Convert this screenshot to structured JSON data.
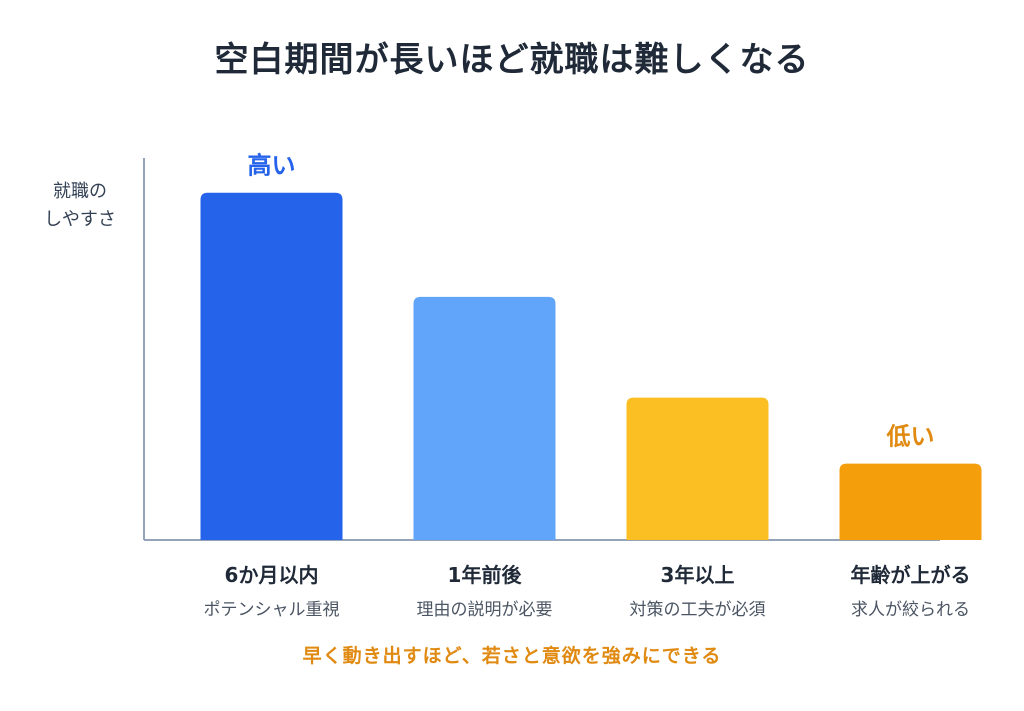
{
  "chart_data": {
    "type": "bar",
    "title": "空白期間が長いほど就職は難しくなる",
    "ylabel_lines": [
      "就職の",
      "しやすさ"
    ],
    "categories": [
      "6か月以内",
      "1年前後",
      "3年以上",
      "年齢が上がる"
    ],
    "subtitles": [
      "ポテンシャル重視",
      "理由の説明が必要",
      "対策の工夫が必須",
      "求人が絞られる"
    ],
    "values": [
      100,
      70,
      41,
      22
    ],
    "ylim": [
      0,
      110
    ],
    "colors": [
      "#2563eb",
      "#60a5fa",
      "#fbbf24",
      "#f59e0b"
    ],
    "callouts": [
      {
        "index": 0,
        "text": "高い",
        "color": "#2563eb"
      },
      {
        "index": 3,
        "text": "低い",
        "color": "#e08a12"
      }
    ],
    "grid": false,
    "footnote": "早く動き出すほど、若さと意欲を強みにできる"
  }
}
